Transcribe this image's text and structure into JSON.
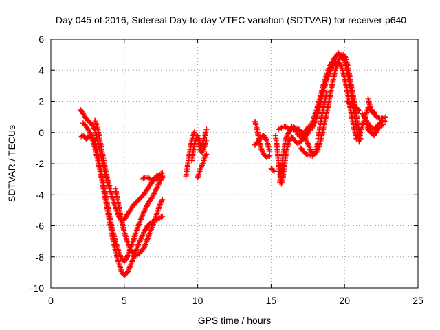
{
  "chart_data": {
    "type": "scatter",
    "title": "Day 045 of 2016, Sidereal Day-to-day VTEC variation (SDTVAR) for receiver p640",
    "xlabel": "GPS time / hours",
    "ylabel": "SDTVAR / TECUs",
    "xlim": [
      0,
      25
    ],
    "ylim": [
      -10,
      6
    ],
    "xticks": [
      0,
      5,
      10,
      15,
      20,
      25
    ],
    "yticks": [
      -10,
      -8,
      -6,
      -4,
      -2,
      0,
      2,
      4,
      6
    ],
    "grid": true,
    "marker": "+",
    "color": "#ff0000",
    "traces": [
      [
        [
          2.0,
          1.5
        ],
        [
          2.2,
          1.2
        ],
        [
          2.4,
          0.9
        ],
        [
          2.6,
          0.7
        ],
        [
          2.8,
          0.5
        ],
        [
          3.0,
          0.2
        ],
        [
          3.2,
          -0.6
        ],
        [
          3.4,
          -1.4
        ],
        [
          3.6,
          -2.2
        ],
        [
          3.8,
          -3.0
        ],
        [
          4.0,
          -3.6
        ],
        [
          4.2,
          -4.2
        ],
        [
          4.4,
          -4.8
        ],
        [
          4.6,
          -5.3
        ],
        [
          4.8,
          -5.7
        ],
        [
          5.0,
          -5.6
        ],
        [
          5.2,
          -5.3
        ],
        [
          5.4,
          -5.0
        ],
        [
          5.6,
          -4.7
        ],
        [
          5.8,
          -4.5
        ],
        [
          6.0,
          -4.3
        ],
        [
          6.2,
          -4.1
        ],
        [
          6.4,
          -3.9
        ],
        [
          6.6,
          -3.6
        ],
        [
          6.8,
          -3.3
        ],
        [
          7.0,
          -3.0
        ],
        [
          7.2,
          -2.8
        ],
        [
          7.4,
          -2.7
        ],
        [
          7.6,
          -2.6
        ]
      ],
      [
        [
          2.0,
          -0.3
        ],
        [
          2.2,
          -0.2
        ],
        [
          2.4,
          -0.4
        ],
        [
          2.6,
          -0.3
        ],
        [
          2.8,
          -0.2
        ],
        [
          3.0,
          -0.6
        ],
        [
          3.2,
          -1.4
        ],
        [
          3.4,
          -2.4
        ],
        [
          3.6,
          -3.4
        ],
        [
          3.8,
          -4.4
        ],
        [
          4.0,
          -5.4
        ],
        [
          4.2,
          -6.3
        ],
        [
          4.4,
          -7.0
        ],
        [
          4.6,
          -7.6
        ],
        [
          4.8,
          -8.1
        ],
        [
          5.0,
          -8.3
        ],
        [
          5.2,
          -8.0
        ],
        [
          5.4,
          -7.5
        ],
        [
          5.6,
          -7.0
        ],
        [
          5.8,
          -6.4
        ],
        [
          6.0,
          -5.9
        ],
        [
          6.2,
          -5.4
        ],
        [
          6.4,
          -5.0
        ],
        [
          6.6,
          -4.6
        ],
        [
          6.8,
          -4.3
        ],
        [
          7.0,
          -4.0
        ],
        [
          7.2,
          -3.6
        ],
        [
          7.4,
          -3.2
        ],
        [
          7.6,
          -2.9
        ]
      ],
      [
        [
          2.2,
          0.6
        ],
        [
          2.4,
          0.4
        ],
        [
          2.6,
          0.1
        ],
        [
          2.8,
          -0.4
        ],
        [
          3.0,
          -1.0
        ],
        [
          3.2,
          -1.8
        ],
        [
          3.4,
          -2.7
        ],
        [
          3.6,
          -3.7
        ],
        [
          3.8,
          -4.7
        ],
        [
          4.0,
          -5.7
        ],
        [
          4.2,
          -6.7
        ],
        [
          4.4,
          -7.6
        ],
        [
          4.6,
          -8.3
        ],
        [
          4.8,
          -8.9
        ],
        [
          5.0,
          -9.2
        ],
        [
          5.2,
          -9.0
        ],
        [
          5.4,
          -8.6
        ],
        [
          5.6,
          -8.1
        ],
        [
          5.8,
          -7.6
        ],
        [
          6.0,
          -7.1
        ],
        [
          6.2,
          -6.7
        ],
        [
          6.4,
          -6.3
        ],
        [
          6.6,
          -6.0
        ],
        [
          6.8,
          -5.8
        ],
        [
          7.0,
          -5.7
        ],
        [
          7.2,
          -5.6
        ],
        [
          7.4,
          -5.5
        ],
        [
          7.6,
          -5.4
        ]
      ],
      [
        [
          3.0,
          0.8
        ],
        [
          3.2,
          0.2
        ],
        [
          3.4,
          -0.8
        ],
        [
          3.6,
          -1.8
        ],
        [
          3.8,
          -2.8
        ],
        [
          4.0,
          -3.4
        ]
      ],
      [
        [
          4.4,
          -3.6
        ],
        [
          4.6,
          -4.6
        ],
        [
          4.8,
          -5.6
        ],
        [
          5.0,
          -6.4
        ],
        [
          5.2,
          -7.0
        ],
        [
          5.4,
          -7.5
        ],
        [
          5.6,
          -7.8
        ],
        [
          5.8,
          -7.9
        ],
        [
          6.0,
          -7.8
        ],
        [
          6.2,
          -7.6
        ],
        [
          6.4,
          -7.3
        ],
        [
          6.6,
          -6.8
        ],
        [
          6.8,
          -6.3
        ],
        [
          7.0,
          -5.8
        ],
        [
          7.2,
          -5.3
        ],
        [
          7.4,
          -4.7
        ],
        [
          7.6,
          -4.3
        ]
      ],
      [
        [
          6.2,
          -3.0
        ],
        [
          6.4,
          -2.9
        ],
        [
          6.6,
          -2.9
        ],
        [
          6.8,
          -3.0
        ],
        [
          7.0,
          -3.1
        ],
        [
          7.2,
          -3.0
        ],
        [
          7.4,
          -2.9
        ],
        [
          7.6,
          -2.8
        ]
      ],
      [
        [
          9.2,
          -2.8
        ],
        [
          9.3,
          -2.2
        ],
        [
          9.4,
          -1.6
        ],
        [
          9.5,
          -1.0
        ],
        [
          9.6,
          -0.5
        ],
        [
          9.7,
          -0.2
        ],
        [
          9.8,
          0.1
        ]
      ],
      [
        [
          9.6,
          -1.8
        ],
        [
          9.7,
          -1.2
        ],
        [
          9.8,
          -0.6
        ],
        [
          9.9,
          -0.4
        ],
        [
          10.0,
          -0.2
        ],
        [
          10.1,
          -0.9
        ],
        [
          10.2,
          -1.2
        ],
        [
          10.3,
          -0.8
        ],
        [
          10.4,
          -0.5
        ],
        [
          10.5,
          -0.2
        ],
        [
          10.6,
          0.2
        ]
      ],
      [
        [
          10.0,
          -2.9
        ],
        [
          10.1,
          -2.6
        ],
        [
          10.2,
          -2.3
        ],
        [
          10.3,
          -2.1
        ],
        [
          10.4,
          -1.9
        ],
        [
          10.5,
          -1.5
        ],
        [
          10.6,
          -1.4
        ]
      ],
      [
        [
          10.1,
          -0.4
        ],
        [
          10.2,
          -0.9
        ],
        [
          10.3,
          -1.3
        ],
        [
          10.4,
          -1.1
        ],
        [
          10.5,
          -0.8
        ],
        [
          10.6,
          -0.5
        ]
      ],
      [
        [
          13.9,
          0.7
        ],
        [
          14.0,
          0.4
        ],
        [
          14.1,
          -0.1
        ],
        [
          14.2,
          -0.6
        ],
        [
          14.3,
          -1.0
        ],
        [
          14.5,
          -1.4
        ],
        [
          14.7,
          -1.6
        ],
        [
          14.9,
          -1.5
        ]
      ],
      [
        [
          13.9,
          -0.8
        ],
        [
          14.1,
          -0.6
        ],
        [
          14.3,
          -0.3
        ],
        [
          14.5,
          -0.2
        ],
        [
          14.7,
          -0.5
        ],
        [
          14.9,
          -1.2
        ]
      ],
      [
        [
          15.0,
          -2.3
        ],
        [
          15.2,
          -2.5
        ]
      ],
      [
        [
          15.3,
          -0.2
        ],
        [
          15.4,
          -0.9
        ],
        [
          15.5,
          -1.9
        ],
        [
          15.6,
          -2.7
        ],
        [
          15.7,
          -3.3
        ],
        [
          15.8,
          -3.0
        ],
        [
          15.9,
          -2.2
        ],
        [
          16.0,
          -1.4
        ],
        [
          16.2,
          -0.6
        ],
        [
          16.4,
          -0.3
        ],
        [
          16.6,
          -0.5
        ],
        [
          16.8,
          -0.7
        ],
        [
          17.0,
          -0.6
        ],
        [
          17.2,
          -0.4
        ],
        [
          17.4,
          -0.2
        ],
        [
          17.6,
          0.1
        ],
        [
          17.8,
          0.6
        ],
        [
          18.0,
          1.2
        ],
        [
          18.2,
          1.8
        ],
        [
          18.4,
          2.5
        ],
        [
          18.6,
          3.2
        ],
        [
          18.8,
          3.8
        ],
        [
          19.0,
          4.3
        ],
        [
          19.2,
          4.6
        ],
        [
          19.4,
          4.9
        ],
        [
          19.6,
          5.1
        ],
        [
          19.8,
          4.9
        ],
        [
          20.0,
          4.6
        ],
        [
          20.2,
          3.8
        ],
        [
          20.4,
          2.8
        ],
        [
          20.6,
          1.6
        ],
        [
          20.8,
          0.4
        ],
        [
          21.0,
          -0.6
        ]
      ],
      [
        [
          15.5,
          0.2
        ],
        [
          15.7,
          0.3
        ],
        [
          15.9,
          0.4
        ],
        [
          16.1,
          0.3
        ],
        [
          16.3,
          0.2
        ],
        [
          16.5,
          0.2
        ],
        [
          16.7,
          0.3
        ],
        [
          16.9,
          0.2
        ],
        [
          17.1,
          0.0
        ],
        [
          17.3,
          -0.3
        ],
        [
          17.5,
          -0.7
        ],
        [
          17.7,
          -1.2
        ],
        [
          17.9,
          -1.4
        ],
        [
          18.1,
          -1.3
        ],
        [
          18.3,
          -0.8
        ],
        [
          18.5,
          0.0
        ],
        [
          18.7,
          0.9
        ],
        [
          18.9,
          1.8
        ],
        [
          19.1,
          2.8
        ],
        [
          19.3,
          3.7
        ],
        [
          19.5,
          4.4
        ],
        [
          19.7,
          4.9
        ],
        [
          19.9,
          5.0
        ],
        [
          20.1,
          4.8
        ],
        [
          20.3,
          3.9
        ],
        [
          20.5,
          2.8
        ],
        [
          20.7,
          1.8
        ],
        [
          20.9,
          0.6
        ],
        [
          21.1,
          -0.4
        ]
      ],
      [
        [
          15.6,
          -3.2
        ],
        [
          15.8,
          -1.6
        ],
        [
          16.0,
          -0.4
        ],
        [
          16.2,
          0.0
        ],
        [
          16.4,
          0.4
        ],
        [
          16.6,
          0.3
        ],
        [
          16.8,
          -0.1
        ],
        [
          17.0,
          -0.3
        ],
        [
          17.2,
          -0.1
        ],
        [
          17.4,
          0.2
        ],
        [
          17.6,
          0.4
        ],
        [
          17.8,
          0.3
        ],
        [
          18.0,
          0.7
        ],
        [
          18.2,
          1.3
        ],
        [
          18.4,
          2.0
        ],
        [
          18.6,
          2.8
        ],
        [
          18.8,
          3.4
        ],
        [
          19.0,
          3.9
        ],
        [
          19.2,
          4.3
        ],
        [
          19.4,
          4.6
        ],
        [
          19.6,
          4.5
        ],
        [
          19.8,
          4.2
        ],
        [
          20.0,
          3.5
        ],
        [
          20.2,
          2.6
        ],
        [
          20.4,
          1.5
        ],
        [
          20.6,
          0.5
        ],
        [
          20.8,
          -0.4
        ]
      ],
      [
        [
          17.0,
          -1.0
        ],
        [
          17.4,
          -1.4
        ],
        [
          17.8,
          -1.5
        ],
        [
          18.0,
          -1.3
        ],
        [
          18.2,
          -0.6
        ]
      ],
      [
        [
          18.2,
          -0.4
        ],
        [
          18.4,
          0.8
        ],
        [
          18.6,
          1.8
        ],
        [
          18.8,
          2.6
        ]
      ],
      [
        [
          20.2,
          2.0
        ],
        [
          20.4,
          1.8
        ],
        [
          20.6,
          1.6
        ],
        [
          20.8,
          1.6
        ],
        [
          21.0,
          1.4
        ]
      ],
      [
        [
          21.0,
          -0.2
        ],
        [
          21.2,
          0.4
        ],
        [
          21.4,
          1.0
        ],
        [
          21.6,
          1.6
        ],
        [
          21.8,
          1.4
        ],
        [
          22.0,
          1.2
        ],
        [
          22.2,
          1.0
        ],
        [
          22.4,
          0.9
        ],
        [
          22.6,
          0.9
        ],
        [
          22.8,
          1.0
        ]
      ],
      [
        [
          21.2,
          1.2
        ],
        [
          21.4,
          0.9
        ],
        [
          21.6,
          0.6
        ],
        [
          21.8,
          0.3
        ],
        [
          22.0,
          0.2
        ],
        [
          22.2,
          0.4
        ],
        [
          22.4,
          0.6
        ],
        [
          22.6,
          0.8
        ],
        [
          22.8,
          0.7
        ]
      ],
      [
        [
          21.5,
          0.6
        ],
        [
          21.6,
          0.2
        ],
        [
          21.8,
          0.0
        ],
        [
          22.0,
          -0.2
        ],
        [
          22.2,
          0.1
        ],
        [
          22.4,
          0.4
        ],
        [
          22.6,
          0.5
        ]
      ],
      [
        [
          21.6,
          2.2
        ],
        [
          21.7,
          1.8
        ],
        [
          21.8,
          1.5
        ],
        [
          22.0,
          1.3
        ]
      ]
    ]
  }
}
